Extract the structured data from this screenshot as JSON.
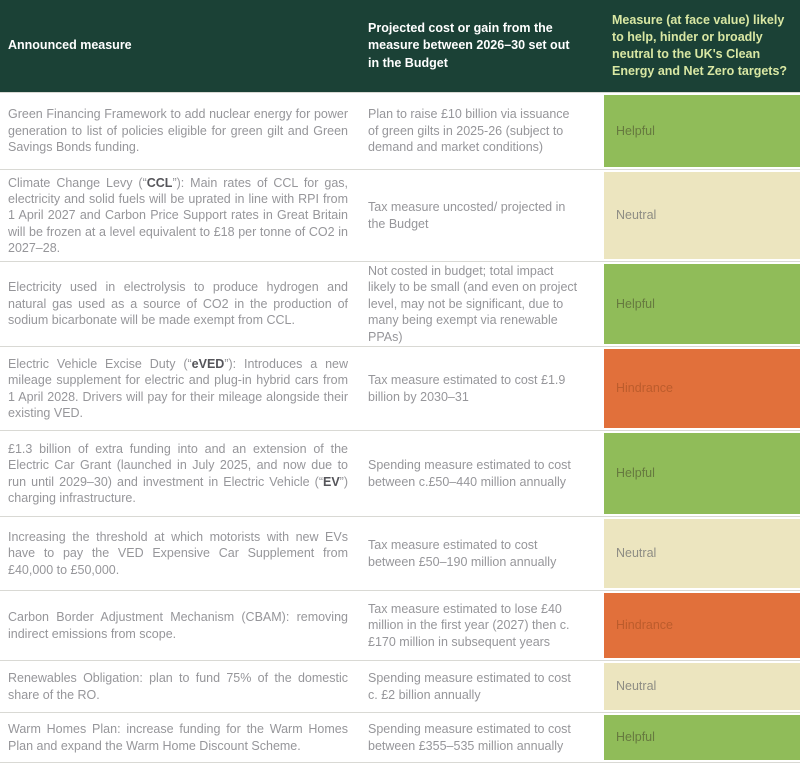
{
  "colors": {
    "header_bg": "#1b4136",
    "header_text": "#ffffff",
    "header_col3_text": "#d9e7a3",
    "body_text": "#96969a",
    "helpful_bg": "#90bc59",
    "helpful_text": "#66793f",
    "neutral_bg": "#ece5bf",
    "neutral_text": "#8e8d84",
    "hindrance_bg": "#e1703b",
    "hindrance_text": "#bc5c2c",
    "divider": "#d9d9d4"
  },
  "header": {
    "col1": "Announced measure",
    "col2": "Projected cost or gain from the measure between 2026–30 set out in the Budget",
    "col3": "Measure (at face value) likely to help, hinder or broadly neutral to the UK's Clean Energy and Net Zero targets?"
  },
  "rows": [
    {
      "measure_runs": [
        {
          "t": "Green Financing Framework to add nuclear energy for power generation to list of policies eligible for green gilt and Green Savings Bonds funding."
        }
      ],
      "cost": "Plan to raise £10 billion via issuance of green gilts in 2025-26 (subject to demand and market conditions)",
      "verdict": "Helpful",
      "verdict_type": "helpful"
    },
    {
      "measure_runs": [
        {
          "t": "Climate Change Levy (“"
        },
        {
          "t": "CCL",
          "b": true
        },
        {
          "t": "”): Main rates of CCL for gas, electricity and solid fuels will be uprated in line with RPI from 1 April 2027 and Carbon Price Support rates in Great Britain will be frozen at a level equivalent to £18 per tonne of CO2 in 2027–28."
        }
      ],
      "cost": "Tax measure uncosted/ projected in the Budget",
      "verdict": "Neutral",
      "verdict_type": "neutral"
    },
    {
      "measure_runs": [
        {
          "t": "Electricity used in electrolysis to produce hydrogen and natural gas used as a source of CO2 in the production of sodium bicarbonate will be made exempt from CCL."
        }
      ],
      "cost": "Not costed in budget; total impact likely to be small (and even on project level, may not be significant, due to many being exempt via renewable PPAs)",
      "verdict": "Helpful",
      "verdict_type": "helpful"
    },
    {
      "measure_runs": [
        {
          "t": "Electric Vehicle Excise Duty (“"
        },
        {
          "t": "eVED",
          "b": true
        },
        {
          "t": "”): Introduces a new mileage supplement for electric and plug-in hybrid cars from 1 April 2028. Drivers will pay for their mileage alongside their existing VED."
        }
      ],
      "cost": "Tax measure estimated to cost £1.9 billion by 2030–31",
      "verdict": "Hindrance",
      "verdict_type": "hindrance"
    },
    {
      "measure_runs": [
        {
          "t": "£1.3 billion of extra funding into and an extension of the Electric Car Grant (launched in July 2025, and now due to run until 2029–30) and investment in Electric Vehicle (“"
        },
        {
          "t": "EV",
          "b": true
        },
        {
          "t": "”) charging infrastructure."
        }
      ],
      "cost": "Spending measure estimated to cost between c.£50–440 million annually",
      "verdict": "Helpful",
      "verdict_type": "helpful"
    },
    {
      "measure_runs": [
        {
          "t": "Increasing the threshold at which motorists with new EVs have to pay the VED Expensive Car Supplement from £40,000 to £50,000."
        }
      ],
      "cost": "Tax measure estimated to cost between £50–190 million annually",
      "verdict": "Neutral",
      "verdict_type": "neutral"
    },
    {
      "measure_runs": [
        {
          "t": "Carbon Border Adjustment Mechanism (CBAM): removing indirect emissions from scope."
        }
      ],
      "cost": "Tax measure estimated to lose £40 million in the first year (2027) then c.£170 million in subsequent years",
      "verdict": "Hindrance",
      "verdict_type": "hindrance"
    },
    {
      "measure_runs": [
        {
          "t": "Renewables Obligation: plan to fund 75% of the domestic share of the RO."
        }
      ],
      "cost": "Spending measure estimated to cost c. £2 billion annually",
      "verdict": "Neutral",
      "verdict_type": "neutral"
    },
    {
      "measure_runs": [
        {
          "t": "Warm Homes Plan: increase funding for the Warm Homes Plan and expand the Warm Home Discount Scheme."
        }
      ],
      "cost": "Spending measure estimated to cost between £355–535 million annually",
      "verdict": "Helpful",
      "verdict_type": "helpful"
    }
  ]
}
